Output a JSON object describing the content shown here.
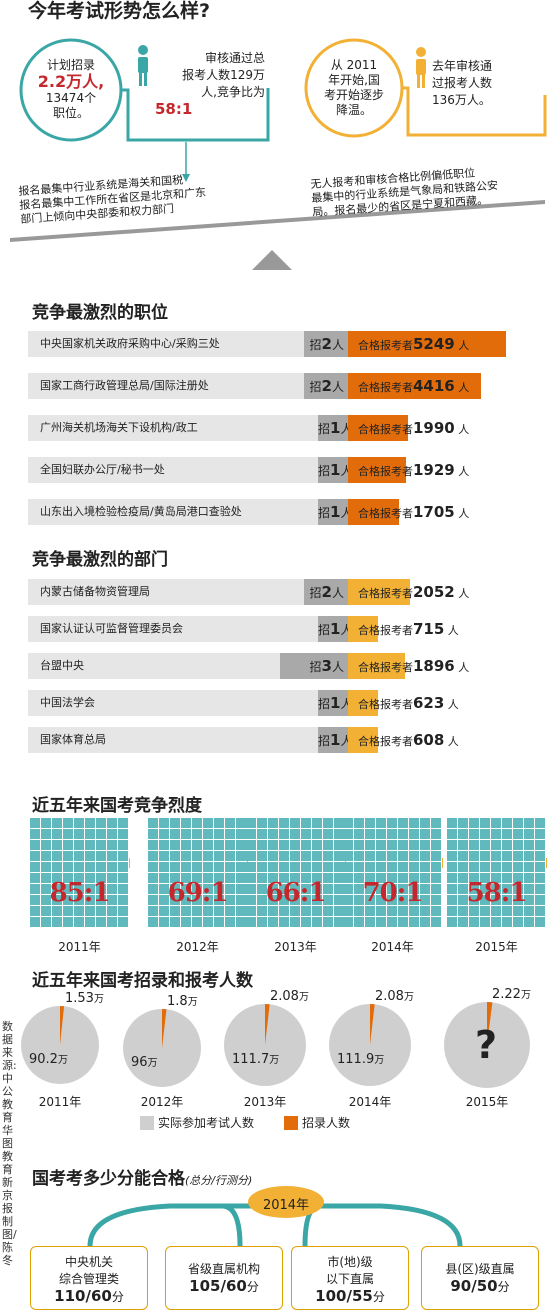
{
  "top": {
    "title": "今年考试形势怎么样?",
    "left_circle": [
      "计划招录",
      "2.2万人,",
      "13474个",
      "职位。"
    ],
    "left_box": [
      "审核通过总",
      "报考人数129万",
      "人,竞争比为",
      "58:1"
    ],
    "right_circle": [
      "从 2011",
      "年开始,国",
      "考开始逐步",
      "降温。"
    ],
    "right_box": [
      "去年审核通",
      "过报考人数",
      "136万人。"
    ],
    "left_note": [
      "报名最集中行业系统是海关和国税",
      "报名最集中工作所在省区是北京和广东",
      "部门上倾向中央部委和权力部门"
    ],
    "right_note": [
      "无人报考和审核合格比例偏低职位",
      "最集中的行业系统是气象局和铁路公安",
      "局。报名最少的省区是宁夏和西藏。"
    ]
  },
  "positions": {
    "title": "竞争最激烈的职位",
    "rows": [
      {
        "name": "中央国家机关政府采购中心/采购三处",
        "recruit": 2,
        "applicants": 5249
      },
      {
        "name": "国家工商行政管理总局/国际注册处",
        "recruit": 2,
        "applicants": 4416
      },
      {
        "name": "广州海关机场海关下设机构/政工",
        "recruit": 1,
        "applicants": 1990
      },
      {
        "name": "全国妇联办公厅/秘书一处",
        "recruit": 1,
        "applicants": 1929
      },
      {
        "name": "山东出入境检验检疫局/黄岛局港口查验处",
        "recruit": 1,
        "applicants": 1705
      }
    ],
    "recruit_prefix": "招",
    "recruit_suffix": "人",
    "applicants_prefix": "合格报考者",
    "applicants_suffix": "人",
    "color": "#e36c0a"
  },
  "departments": {
    "title": "竞争最激烈的部门",
    "rows": [
      {
        "name": "内蒙古储备物资管理局",
        "recruit": 2,
        "applicants": 2052
      },
      {
        "name": "国家认证认可监督管理委员会",
        "recruit": 1,
        "applicants": 715
      },
      {
        "name": "台盟中央",
        "recruit": 3,
        "applicants": 1896
      },
      {
        "name": "中国法学会",
        "recruit": 1,
        "applicants": 623
      },
      {
        "name": "国家体育总局",
        "recruit": 1,
        "applicants": 608
      }
    ],
    "color": "#f2b134"
  },
  "ratio": {
    "title": "近五年来国考竞争烈度",
    "years": [
      {
        "year": "2011年",
        "label": "85:1"
      },
      {
        "year": "2012年",
        "label": "69:1"
      },
      {
        "year": "2013年",
        "label": "66:1"
      },
      {
        "year": "2014年",
        "label": "70:1"
      },
      {
        "year": "2015年",
        "label": "58:1"
      }
    ],
    "grid_color": "#5fb9bd",
    "marker_color": "#f2b134"
  },
  "chart_data": {
    "type": "pie",
    "title": "近五年来国考招录和报考人数",
    "unit": "万",
    "years": [
      {
        "year": "2011年",
        "recruit": 1.53,
        "examinees": 90.2,
        "recruit_label": "1.53",
        "examinees_label": "90.2"
      },
      {
        "year": "2012年",
        "recruit": 1.8,
        "examinees": 96,
        "recruit_label": "1.8",
        "examinees_label": "96"
      },
      {
        "year": "2013年",
        "recruit": 2.08,
        "examinees": 111.7,
        "recruit_label": "2.08",
        "examinees_label": "111.7"
      },
      {
        "year": "2014年",
        "recruit": 2.08,
        "examinees": 111.9,
        "recruit_label": "2.08",
        "examinees_label": "111.9"
      },
      {
        "year": "2015年",
        "recruit": 2.22,
        "examinees": null,
        "recruit_label": "2.22",
        "examinees_label": "?"
      }
    ],
    "legend": [
      {
        "name": "实际参加考试人数",
        "color": "#cfcfcf"
      },
      {
        "name": "招录人数",
        "color": "#e36c0a"
      }
    ]
  },
  "scores": {
    "title": "国考考多少分能合格",
    "subtitle": "(总分/行测分)",
    "year": "2014年",
    "boxes": [
      {
        "line1": "中央机关",
        "line2": "综合管理类",
        "score": "110/60",
        "unit": "分"
      },
      {
        "line1": "省级直属机构",
        "line2": "",
        "score": "105/60",
        "unit": "分"
      },
      {
        "line1": "市(地)级",
        "line2": "以下直属",
        "score": "100/55",
        "unit": "分"
      },
      {
        "line1": "县(区)级直属",
        "line2": "",
        "score": "90/50",
        "unit": "分"
      }
    ]
  },
  "credit": "数据来源:中公教育华图教育 新京报制图/陈冬"
}
